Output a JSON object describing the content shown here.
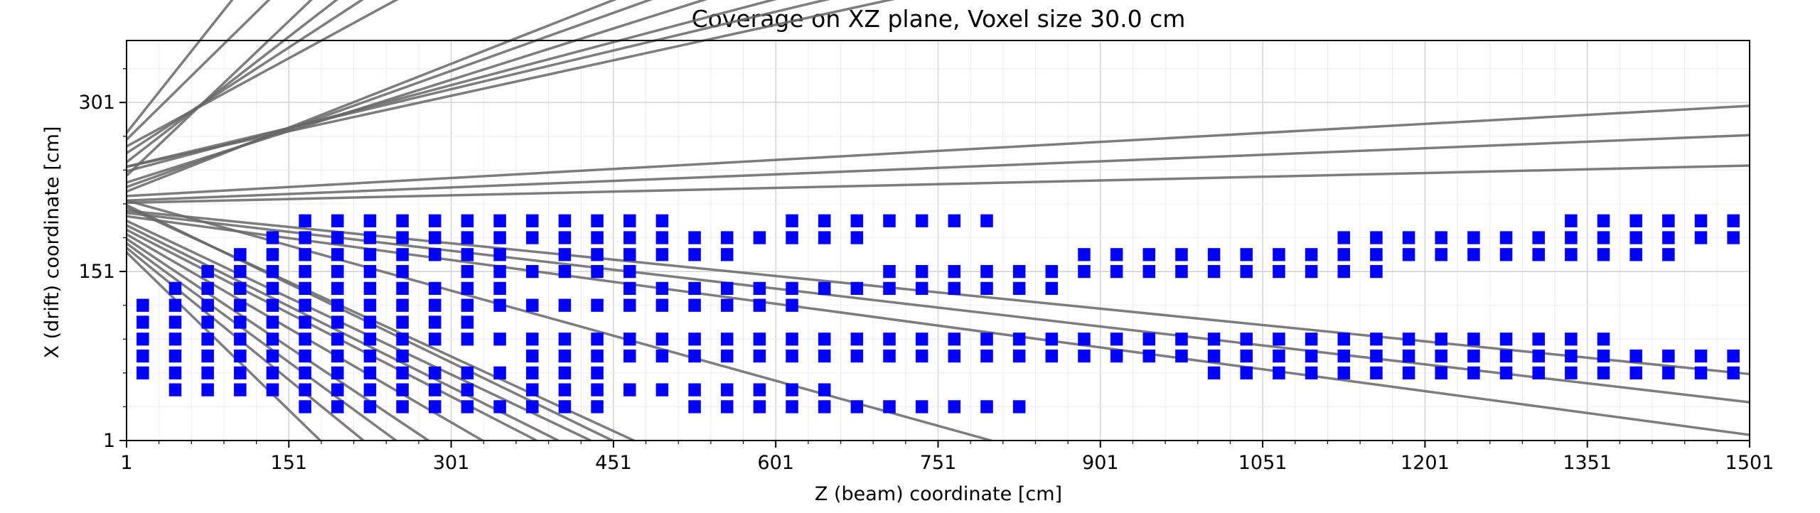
{
  "chart_data": {
    "type": "scatter",
    "title": "Coverage on XZ plane, Voxel size 30.0 cm",
    "xlabel": "Z (beam) coordinate [cm]",
    "ylabel": "X (drift) coordinate [cm]",
    "xlim": [
      1,
      1501
    ],
    "ylim": [
      1,
      356
    ],
    "xticks": [
      1,
      151,
      301,
      451,
      601,
      751,
      901,
      1051,
      1201,
      1351,
      1501
    ],
    "yticks": [
      1,
      151,
      301
    ],
    "grid": true,
    "marker": "square",
    "marker_color": "#0000ff",
    "line_color": "#666666",
    "voxels": [
      {
        "x": 16,
        "y": 31,
        "z": [
          166,
          196,
          226,
          256,
          286,
          316,
          346,
          376,
          406,
          436,
          526,
          556,
          586,
          616,
          646,
          676,
          706,
          736,
          766,
          796,
          826
        ]
      },
      {
        "x": 16,
        "y": 46,
        "z": [
          46,
          76,
          106,
          136,
          166,
          196,
          226,
          256,
          286,
          316,
          376,
          406,
          436,
          466,
          496,
          526,
          556,
          586,
          616,
          646
        ]
      },
      {
        "x": 16,
        "y": 61,
        "z": [
          16,
          46,
          76,
          106,
          136,
          166,
          196,
          226,
          256,
          286,
          316,
          346,
          376,
          406,
          436,
          1006,
          1036,
          1066,
          1096,
          1126,
          1156,
          1186,
          1216,
          1246,
          1276,
          1306,
          1336,
          1366,
          1396,
          1426,
          1456,
          1486
        ]
      },
      {
        "x": 16,
        "y": 76,
        "z": [
          16,
          46,
          76,
          106,
          136,
          166,
          196,
          226,
          256,
          376,
          406,
          436,
          466,
          496,
          526,
          556,
          586,
          616,
          646,
          676,
          706,
          736,
          766,
          796,
          826,
          856,
          886,
          916,
          946,
          976,
          1006,
          1036,
          1066,
          1096,
          1126,
          1156,
          1186,
          1216,
          1246,
          1276,
          1306,
          1336,
          1366,
          1396,
          1426,
          1456,
          1486
        ]
      },
      {
        "x": 16,
        "y": 91,
        "z": [
          16,
          46,
          76,
          106,
          136,
          166,
          196,
          226,
          256,
          286,
          316,
          346,
          376,
          406,
          436,
          466,
          496,
          526,
          556,
          586,
          616,
          646,
          676,
          706,
          736,
          766,
          796,
          826,
          856,
          886,
          916,
          946,
          976,
          1006,
          1036,
          1066,
          1096,
          1126,
          1156,
          1186,
          1216,
          1246,
          1276,
          1306,
          1336,
          1366
        ]
      },
      {
        "x": 16,
        "y": 106,
        "z": [
          16,
          46,
          76,
          106,
          136,
          166,
          196,
          226,
          256,
          286,
          316
        ]
      },
      {
        "x": 16,
        "y": 121,
        "z": [
          16,
          46,
          76,
          106,
          136,
          166,
          196,
          226,
          256,
          286,
          316,
          346,
          376,
          406,
          436,
          466,
          496,
          526,
          556,
          586,
          616
        ]
      },
      {
        "x": 16,
        "y": 136,
        "z": [
          46,
          76,
          106,
          136,
          166,
          196,
          226,
          256,
          286,
          316,
          346,
          466,
          496,
          526,
          556,
          586,
          616,
          646,
          676,
          706,
          736,
          766,
          796,
          826,
          856
        ]
      },
      {
        "x": 16,
        "y": 151,
        "z": [
          76,
          106,
          136,
          166,
          196,
          226,
          256,
          316,
          346,
          376,
          406,
          436,
          466,
          706,
          736,
          766,
          796,
          826,
          856,
          886,
          916,
          946,
          976,
          1006,
          1036,
          1066,
          1096,
          1126,
          1156
        ]
      },
      {
        "x": 16,
        "y": 166,
        "z": [
          106,
          136,
          166,
          196,
          226,
          256,
          286,
          316,
          346,
          406,
          436,
          466,
          496,
          526,
          556,
          886,
          916,
          946,
          976,
          1006,
          1036,
          1066,
          1096,
          1126,
          1156,
          1186,
          1216,
          1246,
          1276,
          1306,
          1336,
          1366,
          1396,
          1426
        ]
      },
      {
        "x": 16,
        "y": 181,
        "z": [
          136,
          166,
          196,
          226,
          256,
          286,
          316,
          346,
          376,
          406,
          436,
          466,
          496,
          526,
          556,
          586,
          616,
          646,
          676,
          1126,
          1156,
          1186,
          1216,
          1246,
          1276,
          1306,
          1336,
          1366,
          1396,
          1426,
          1456,
          1486
        ]
      },
      {
        "x": 16,
        "y": 196,
        "z": [
          166,
          196,
          226,
          256,
          286,
          316,
          346,
          376,
          406,
          436,
          466,
          496,
          616,
          646,
          676,
          706,
          736,
          766,
          796,
          1336,
          1366,
          1396,
          1426,
          1456,
          1486
        ]
      }
    ],
    "tracks": [
      [
        [
          1,
          256
        ],
        [
          260,
          418
        ]
      ],
      [
        [
          1,
          262
        ],
        [
          300,
          418
        ]
      ],
      [
        [
          1,
          248
        ],
        [
          230,
          418
        ]
      ],
      [
        [
          1,
          236
        ],
        [
          200,
          418
        ]
      ],
      [
        [
          1,
          268
        ],
        [
          160,
          418
        ]
      ],
      [
        [
          1,
          274
        ],
        [
          120,
          418
        ]
      ],
      [
        [
          1,
          222
        ],
        [
          520,
          418
        ]
      ],
      [
        [
          1,
          226
        ],
        [
          560,
          418
        ]
      ],
      [
        [
          1,
          230
        ],
        [
          620,
          418
        ]
      ],
      [
        [
          1,
          240
        ],
        [
          700,
          418
        ]
      ],
      [
        [
          1,
          244
        ],
        [
          760,
          418
        ]
      ],
      [
        [
          1,
          244
        ],
        [
          830,
          418
        ]
      ],
      [
        [
          1,
          218
        ],
        [
          1501,
          298
        ]
      ],
      [
        [
          1,
          214
        ],
        [
          1501,
          272
        ]
      ],
      [
        [
          1,
          212
        ],
        [
          1501,
          245
        ]
      ],
      [
        [
          1,
          205
        ],
        [
          1501,
          60
        ]
      ],
      [
        [
          1,
          203
        ],
        [
          1501,
          35
        ]
      ],
      [
        [
          1,
          200
        ],
        [
          1501,
          6
        ]
      ],
      [
        [
          1,
          196
        ],
        [
          430,
          1
        ]
      ],
      [
        [
          1,
          192
        ],
        [
          400,
          1
        ]
      ],
      [
        [
          1,
          188
        ],
        [
          380,
          1
        ]
      ],
      [
        [
          1,
          184
        ],
        [
          330,
          1
        ]
      ],
      [
        [
          1,
          180
        ],
        [
          280,
          1
        ]
      ],
      [
        [
          1,
          176
        ],
        [
          250,
          1
        ]
      ],
      [
        [
          1,
          172
        ],
        [
          220,
          1
        ]
      ],
      [
        [
          1,
          168
        ],
        [
          180,
          1
        ]
      ],
      [
        [
          1,
          210
        ],
        [
          450,
          1
        ]
      ],
      [
        [
          1,
          208
        ],
        [
          470,
          1
        ]
      ],
      [
        [
          1,
          214
        ],
        [
          800,
          1
        ]
      ]
    ]
  }
}
